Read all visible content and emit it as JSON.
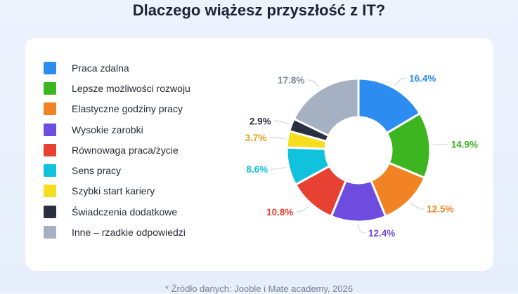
{
  "title": "Dlaczego wiążesz przyszłość z IT?",
  "footnote": "* Źródło danych: Jooble i Mate academy, 2026",
  "chart_data": {
    "type": "pie",
    "title": "Dlaczego wiążesz przyszłość z IT?",
    "donut": true,
    "legend_position": "left",
    "slices": [
      {
        "name": "Praca zdalna",
        "value": 16.4,
        "label": "16.4%",
        "color": "#2d8cf0"
      },
      {
        "name": "Lepsze możliwości rozwoju",
        "value": 14.9,
        "label": "14.9%",
        "color": "#3cb521"
      },
      {
        "name": "Elastyczne godziny pracy",
        "value": 12.5,
        "label": "12.5%",
        "color": "#f28324"
      },
      {
        "name": "Wysokie zarobki",
        "value": 12.4,
        "label": "12.4%",
        "color": "#6f4ce0"
      },
      {
        "name": "Równowaga praca/życie",
        "value": 10.8,
        "label": "10.8%",
        "color": "#e64132"
      },
      {
        "name": "Sens pracy",
        "value": 8.6,
        "label": "8.6%",
        "color": "#11c2dc"
      },
      {
        "name": "Szybki start kariery",
        "value": 3.7,
        "label": "3.7%",
        "color": "#f6de1e"
      },
      {
        "name": "Świadczenia dodatkowe",
        "value": 2.9,
        "label": "2.9%",
        "color": "#2a3040"
      },
      {
        "name": "Inne – rzadkie odpowiedzi",
        "value": 17.8,
        "label": "17.8%",
        "color": "#a5b0c2"
      }
    ]
  },
  "label_colors": [
    "#2d8cf0",
    "#3cb521",
    "#f28324",
    "#6f4ce0",
    "#e64132",
    "#11c2dc",
    "#e0a11a",
    "#2a3040",
    "#7d8899"
  ]
}
